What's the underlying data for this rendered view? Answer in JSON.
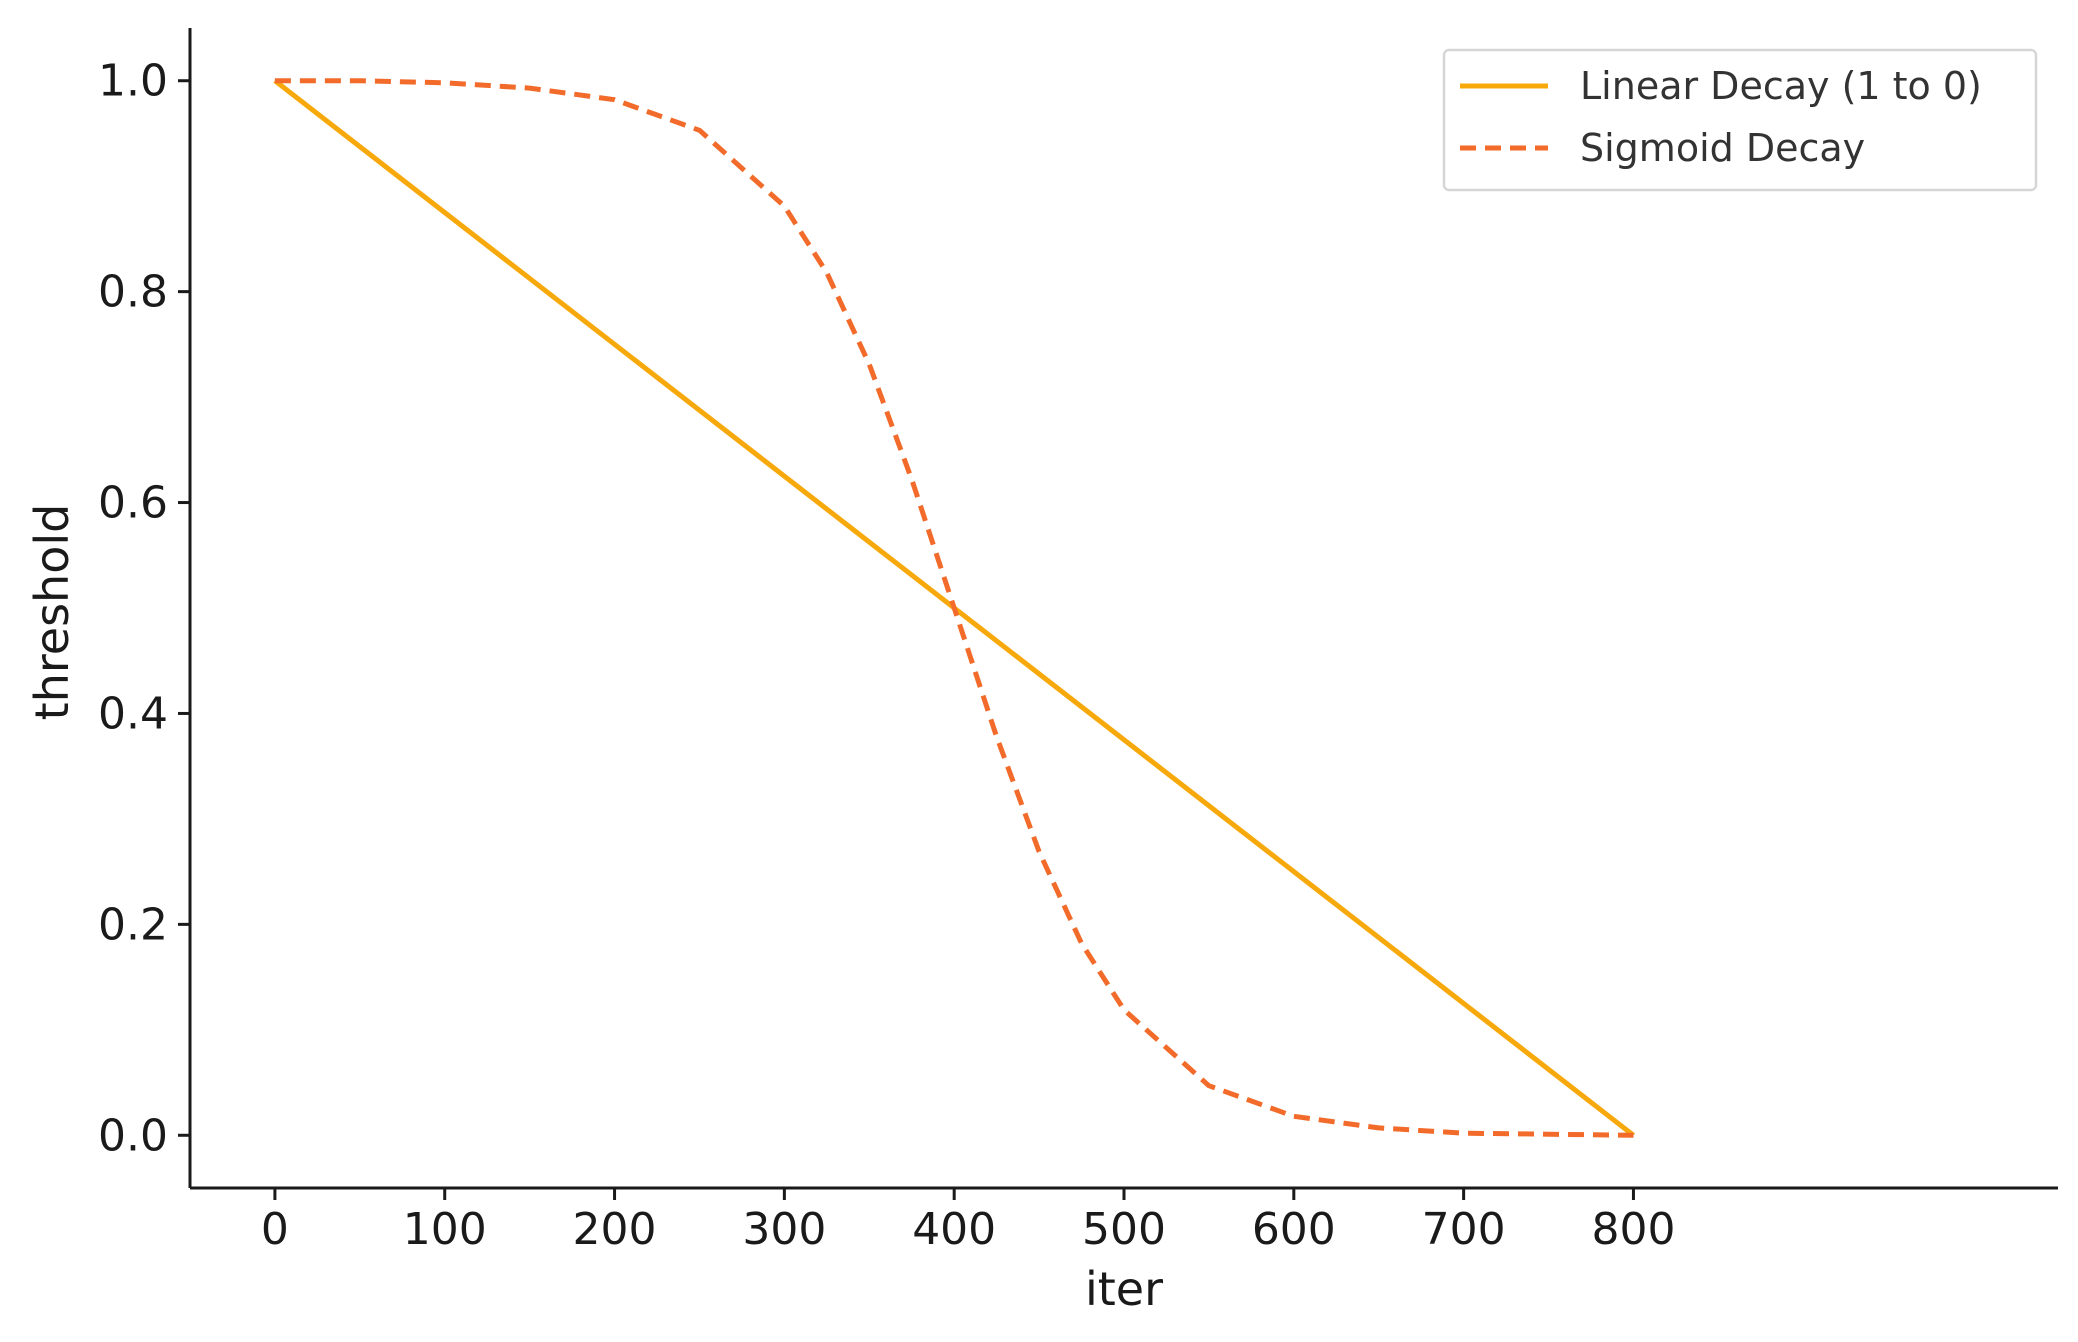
{
  "chart_data": {
    "type": "line",
    "title": "",
    "xlabel": "iter",
    "ylabel": "threshold",
    "xlim": [
      -50,
      1050
    ],
    "ylim": [
      -0.05,
      1.05
    ],
    "xticks": [
      0,
      100,
      200,
      300,
      400,
      500,
      600,
      700,
      800
    ],
    "xtick_labels": [
      "0",
      "100",
      "200",
      "300",
      "400",
      "500",
      "600",
      "700",
      "800"
    ],
    "yticks": [
      0.0,
      0.2,
      0.4,
      0.6,
      0.8,
      1.0
    ],
    "ytick_labels": [
      "0.0",
      "0.2",
      "0.4",
      "0.6",
      "0.8",
      "1.0"
    ],
    "grid": false,
    "legend_position": "top-right",
    "series": [
      {
        "name": "Linear Decay (1 to 0)",
        "color": "#f7a90b",
        "line_style": "solid",
        "x": [
          0,
          800
        ],
        "y": [
          1.0,
          0.0
        ]
      },
      {
        "name": "Sigmoid Decay",
        "color": "#f26b2a",
        "line_style": "dashed",
        "x": [
          0,
          50,
          100,
          150,
          200,
          250,
          300,
          325,
          350,
          375,
          400,
          425,
          450,
          475,
          500,
          550,
          600,
          650,
          700,
          750,
          800
        ],
        "y": [
          1.0,
          1.0,
          0.998,
          0.993,
          0.982,
          0.953,
          0.881,
          0.818,
          0.731,
          0.622,
          0.5,
          0.378,
          0.269,
          0.182,
          0.119,
          0.047,
          0.018,
          0.007,
          0.002,
          0.001,
          0.0
        ]
      }
    ]
  }
}
